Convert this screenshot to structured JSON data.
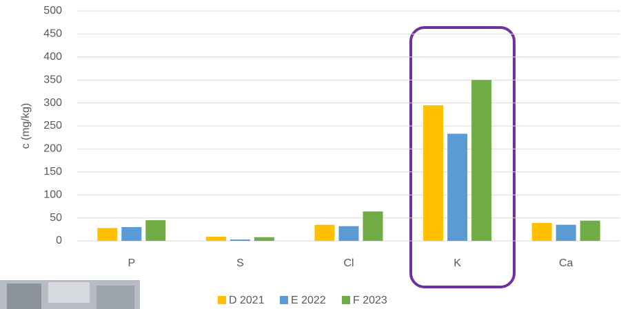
{
  "chart_data": {
    "type": "bar",
    "y_label": "c (mg/kg)",
    "categories": [
      "P",
      "S",
      "Cl",
      "K",
      "Ca"
    ],
    "series": [
      {
        "name": "D 2021",
        "color": "#ffc000",
        "values": [
          28,
          9,
          35,
          295,
          39
        ]
      },
      {
        "name": "E 2022",
        "color": "#5b9bd5",
        "values": [
          30,
          3,
          32,
          233,
          35
        ]
      },
      {
        "name": "F 2023",
        "color": "#70ad47",
        "values": [
          45,
          8,
          64,
          350,
          44
        ]
      }
    ],
    "ylim": [
      0,
      500
    ],
    "yticks": [
      0,
      50,
      100,
      150,
      200,
      250,
      300,
      350,
      400,
      450,
      500
    ],
    "grid": true
  }
}
